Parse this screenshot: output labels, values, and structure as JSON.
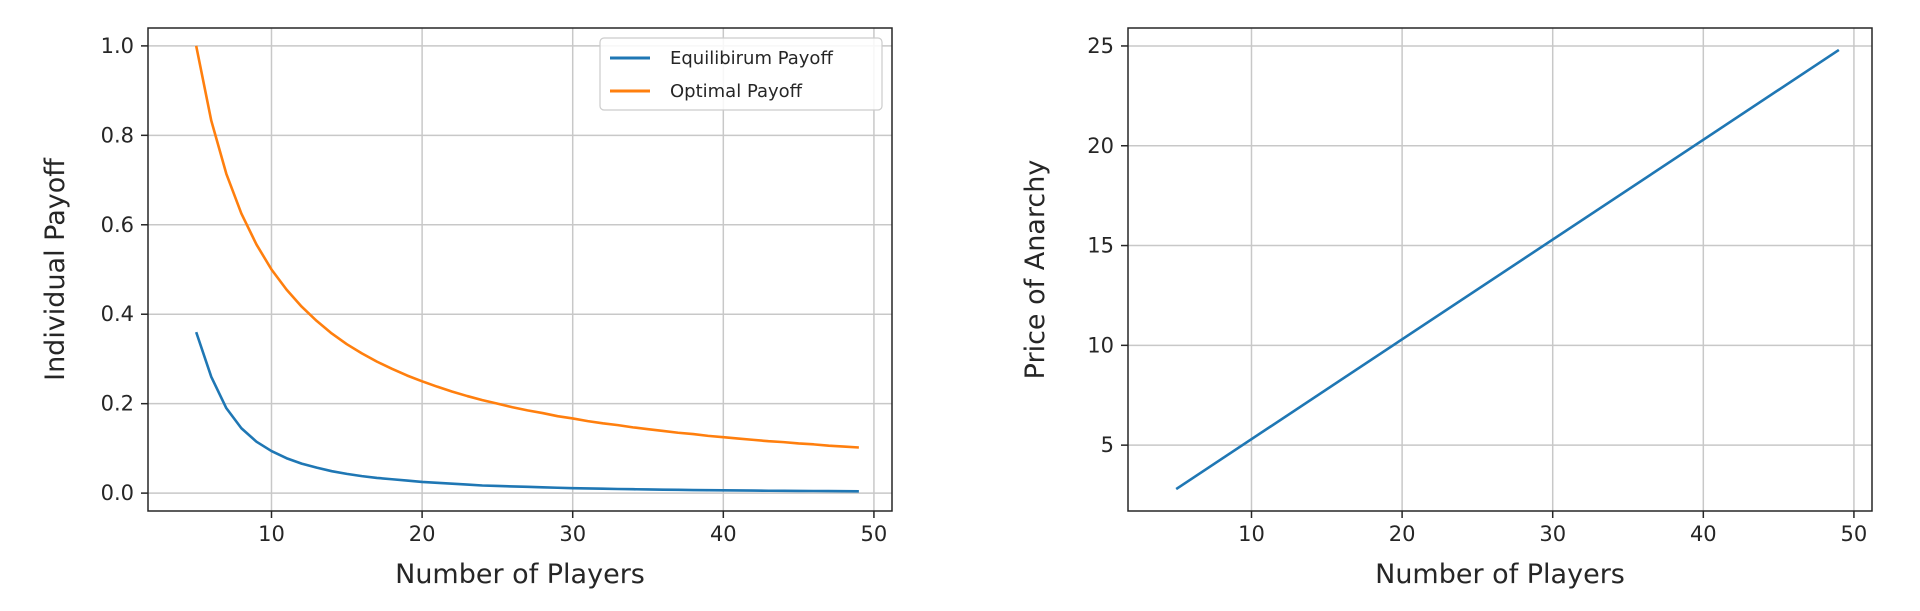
{
  "chart_data": [
    {
      "type": "line",
      "title": "",
      "xlabel": "Number of Players",
      "ylabel": "Individual Payoff",
      "xlim": [
        1.8,
        51.2
      ],
      "ylim": [
        -0.04,
        1.04
      ],
      "xticks": [
        10,
        20,
        30,
        40,
        50
      ],
      "yticks": [
        0.0,
        0.2,
        0.4,
        0.6,
        0.8,
        1.0
      ],
      "xtick_labels": [
        "10",
        "20",
        "30",
        "40",
        "50"
      ],
      "ytick_labels": [
        "0.0",
        "0.2",
        "0.4",
        "0.6",
        "0.8",
        "1.0"
      ],
      "grid": true,
      "legend": "top-right",
      "x": [
        5,
        6,
        7,
        8,
        9,
        10,
        11,
        12,
        13,
        14,
        15,
        16,
        17,
        18,
        19,
        20,
        21,
        22,
        23,
        24,
        25,
        26,
        27,
        28,
        29,
        30,
        31,
        32,
        33,
        34,
        35,
        36,
        37,
        38,
        39,
        40,
        41,
        42,
        43,
        44,
        45,
        46,
        47,
        48,
        49
      ],
      "series": [
        {
          "name": "Equilibirum Payoff",
          "color": "#1f77b4",
          "values": [
            0.36,
            0.26,
            0.19,
            0.145,
            0.115,
            0.094,
            0.078,
            0.066,
            0.057,
            0.049,
            0.043,
            0.038,
            0.034,
            0.031,
            0.028,
            0.025,
            0.023,
            0.021,
            0.019,
            0.017,
            0.016,
            0.015,
            0.014,
            0.013,
            0.012,
            0.011,
            0.0105,
            0.0098,
            0.0092,
            0.0087,
            0.0082,
            0.0077,
            0.0073,
            0.0069,
            0.0065,
            0.0062,
            0.0059,
            0.0056,
            0.0053,
            0.0051,
            0.0049,
            0.0047,
            0.0045,
            0.0043,
            0.0041
          ]
        },
        {
          "name": "Optimal Payoff",
          "color": "#ff7f0e",
          "values": [
            1.0,
            0.833,
            0.714,
            0.625,
            0.556,
            0.5,
            0.455,
            0.417,
            0.385,
            0.357,
            0.333,
            0.3125,
            0.294,
            0.278,
            0.263,
            0.25,
            0.238,
            0.227,
            0.217,
            0.208,
            0.2,
            0.192,
            0.185,
            0.179,
            0.172,
            0.167,
            0.161,
            0.156,
            0.152,
            0.147,
            0.143,
            0.139,
            0.135,
            0.132,
            0.128,
            0.125,
            0.122,
            0.119,
            0.116,
            0.114,
            0.111,
            0.109,
            0.106,
            0.104,
            0.102
          ]
        }
      ]
    },
    {
      "type": "line",
      "title": "",
      "xlabel": "Number of Players",
      "ylabel": "Price of Anarchy",
      "xlim": [
        1.8,
        51.2
      ],
      "ylim": [
        1.7,
        25.9
      ],
      "xticks": [
        10,
        20,
        30,
        40,
        50
      ],
      "yticks": [
        5,
        10,
        15,
        20,
        25
      ],
      "xtick_labels": [
        "10",
        "20",
        "30",
        "40",
        "50"
      ],
      "ytick_labels": [
        "5",
        "10",
        "15",
        "20",
        "25"
      ],
      "grid": true,
      "x": [
        5,
        49
      ],
      "series": [
        {
          "color": "#1f77b4",
          "values": [
            2.8,
            24.8
          ]
        }
      ]
    }
  ]
}
